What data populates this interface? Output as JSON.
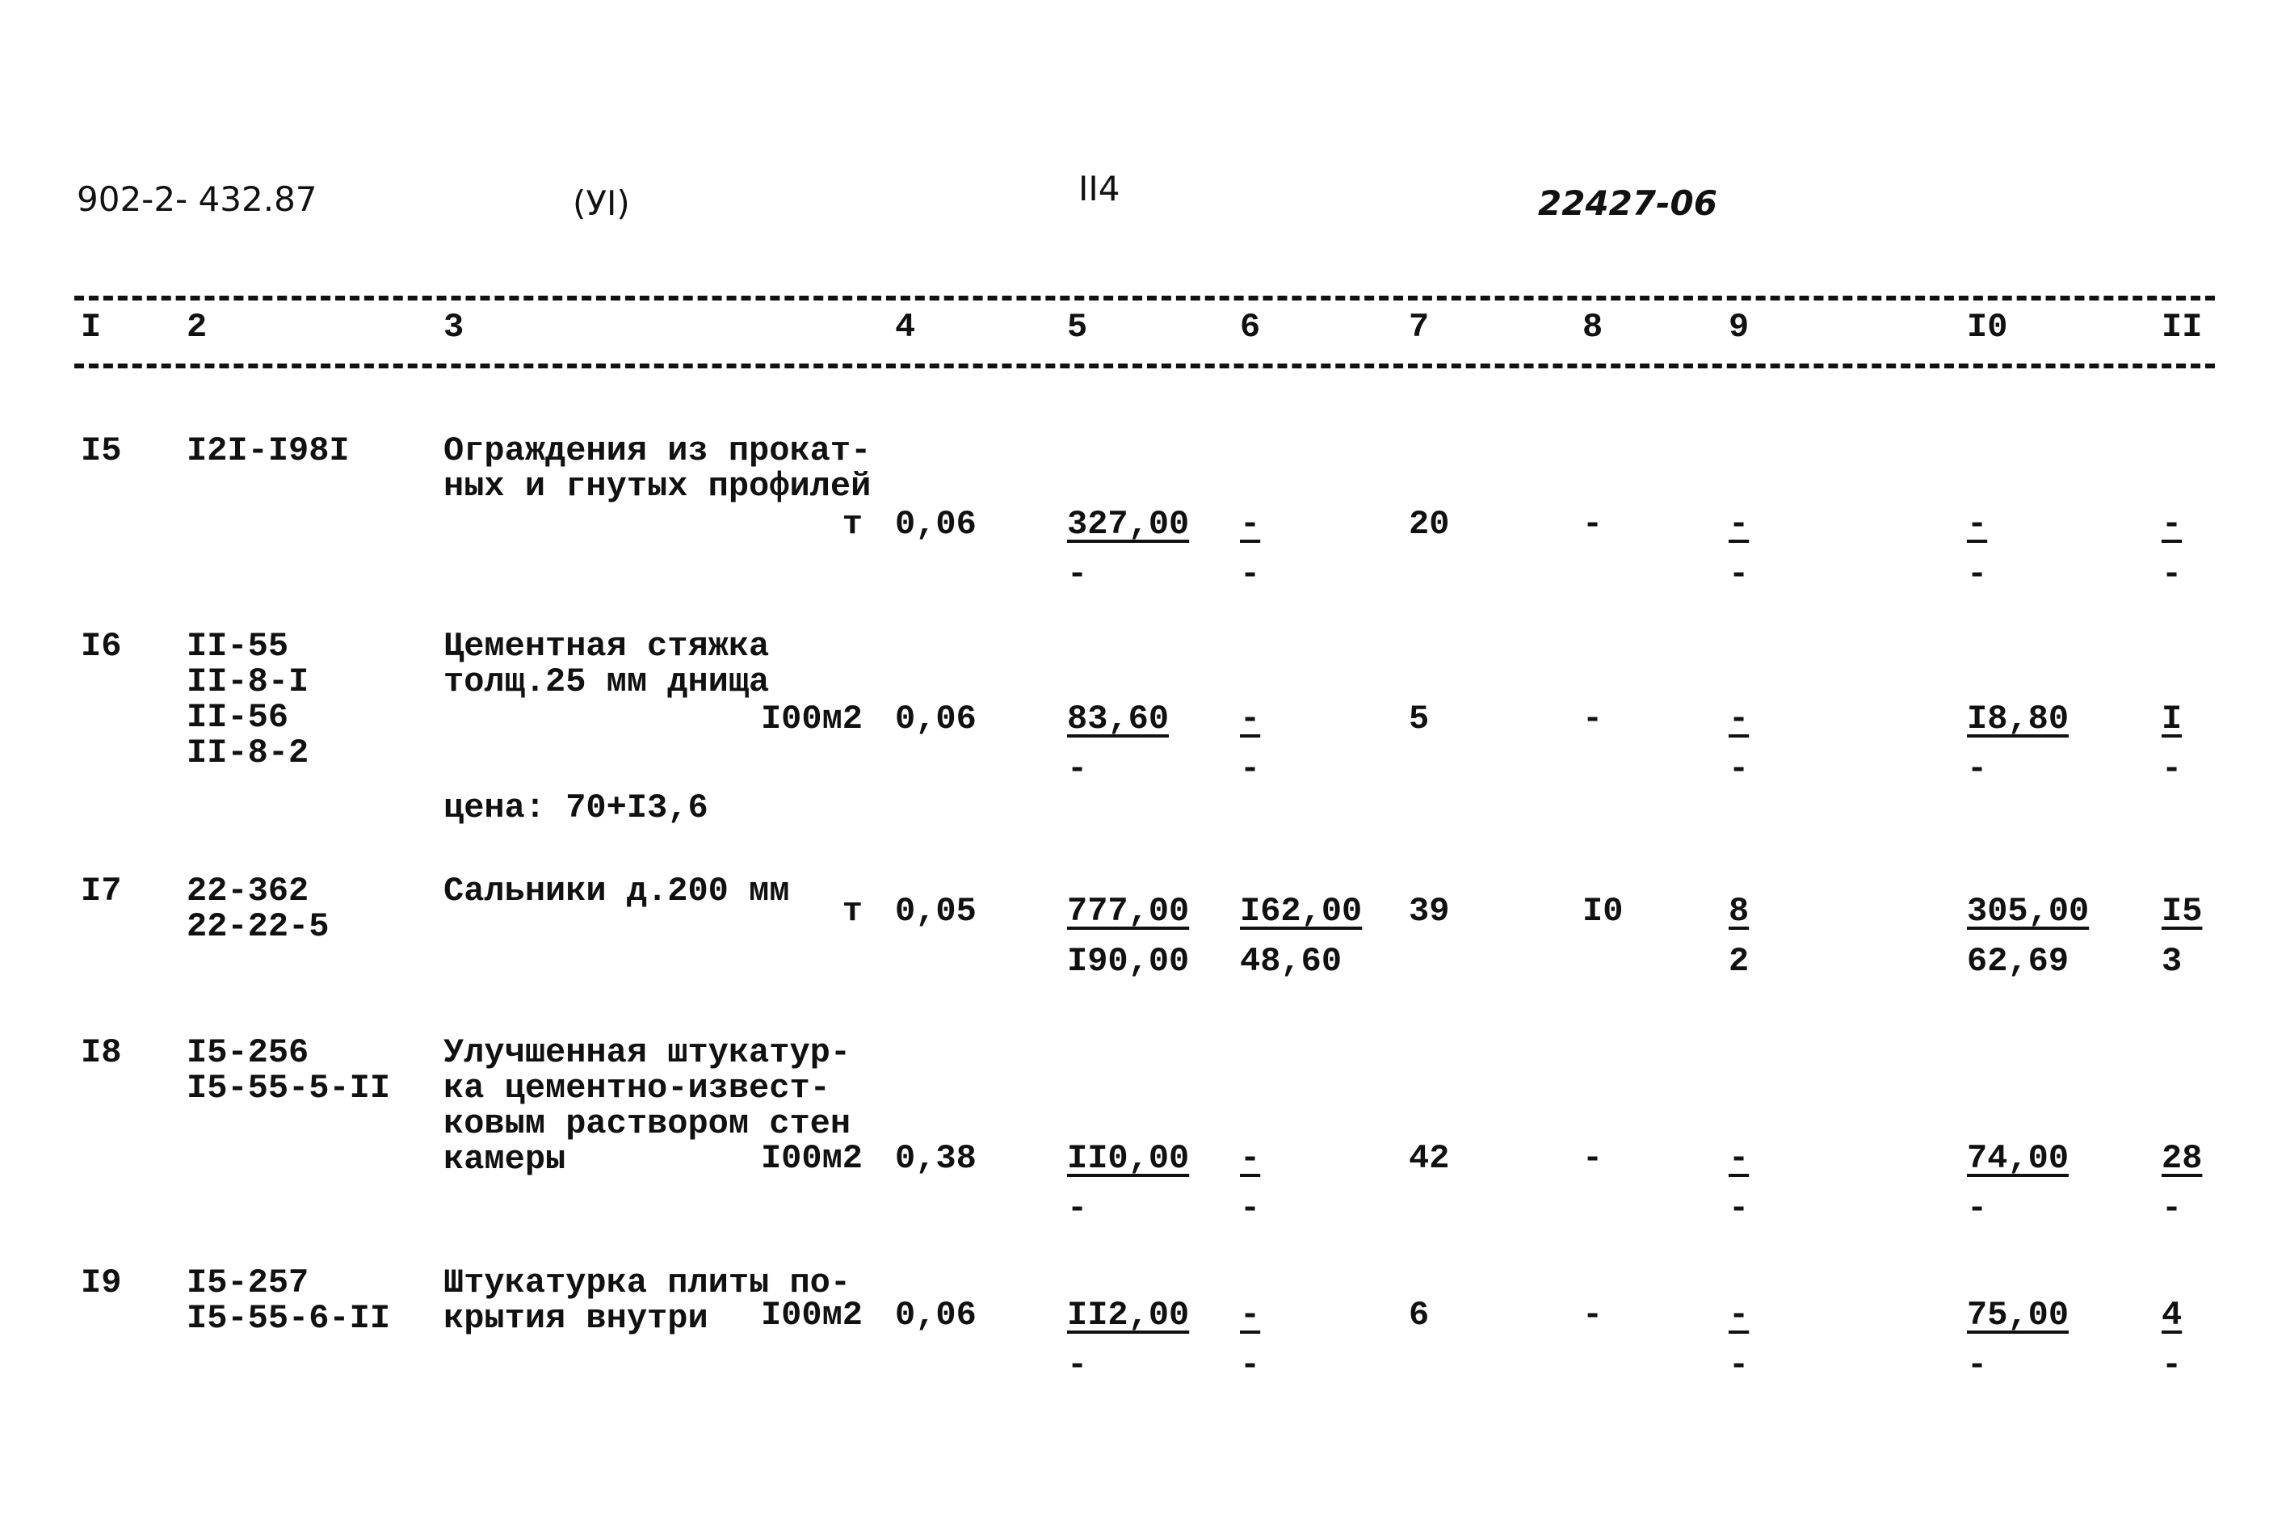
{
  "header": {
    "doc_code": "902-2- 432.87",
    "section": "(УI)",
    "page": "II4",
    "ref": "22427-06"
  },
  "columns": [
    "I",
    "2",
    "3",
    "4",
    "5",
    "6",
    "7",
    "8",
    "9",
    "I0",
    "II"
  ],
  "rows": [
    {
      "no": "I5",
      "codes": [
        "I2I-I98I"
      ],
      "desc": [
        "Ограждения из прокат-",
        "ных и гнутых профилей"
      ],
      "unit": "т",
      "qty": "0,06",
      "c5": [
        "327,00",
        "-"
      ],
      "c6": [
        "-",
        "-"
      ],
      "c7": "20",
      "c8": "-",
      "c9": [
        "-",
        "-"
      ],
      "c10": [
        "-",
        "-"
      ],
      "c11": [
        "-",
        "-"
      ]
    },
    {
      "no": "I6",
      "codes": [
        "II-55",
        "II-8-I",
        "II-56",
        "II-8-2"
      ],
      "desc": [
        "Цементная стяжка",
        "толщ.25 мм днища"
      ],
      "unit": "I00м2",
      "qty": "0,06",
      "c5": [
        "83,60",
        "-"
      ],
      "c6": [
        "-",
        "-"
      ],
      "c7": "5",
      "c8": "-",
      "c9": [
        "-",
        "-"
      ],
      "c10": [
        "I8,80",
        "-"
      ],
      "c11": [
        "I",
        "-"
      ],
      "note": "цена: 70+I3,6"
    },
    {
      "no": "I7",
      "codes": [
        "22-362",
        "22-22-5"
      ],
      "desc": [
        "Сальники д.200 мм"
      ],
      "unit": "т",
      "qty": "0,05",
      "c5": [
        "777,00",
        "I90,00"
      ],
      "c6": [
        "I62,00",
        "48,60"
      ],
      "c7": "39",
      "c8": "I0",
      "c9": [
        "8",
        "2"
      ],
      "c10": [
        "305,00",
        "62,69"
      ],
      "c11": [
        "I5",
        "3"
      ]
    },
    {
      "no": "I8",
      "codes": [
        "I5-256",
        "I5-55-5-II"
      ],
      "desc": [
        "Улучшенная штукатур-",
        "ка цементно-извест-",
        "ковым раствором стен",
        "камеры"
      ],
      "unit": "I00м2",
      "qty": "0,38",
      "c5": [
        "II0,00",
        "-"
      ],
      "c6": [
        "-",
        "-"
      ],
      "c7": "42",
      "c8": "-",
      "c9": [
        "-",
        "-"
      ],
      "c10": [
        "74,00",
        "-"
      ],
      "c11": [
        "28",
        "-"
      ]
    },
    {
      "no": "I9",
      "codes": [
        "I5-257",
        "I5-55-6-II"
      ],
      "desc": [
        "Штукатурка плиты по-",
        "крытия внутри"
      ],
      "unit": "I00м2",
      "qty": "0,06",
      "c5": [
        "II2,00",
        "-"
      ],
      "c6": [
        "-",
        "-"
      ],
      "c7": "6",
      "c8": "-",
      "c9": [
        "-",
        "-"
      ],
      "c10": [
        "75,00",
        "-"
      ],
      "c11": [
        "4",
        "-"
      ]
    }
  ]
}
